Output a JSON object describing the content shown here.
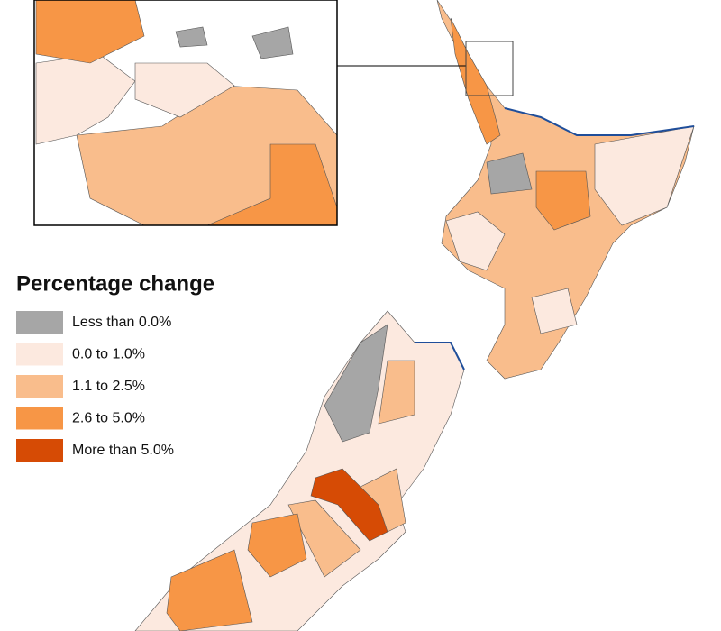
{
  "legend": {
    "title": "Percentage change",
    "items": [
      {
        "label": "Less than 0.0%",
        "color": "#a6a6a6"
      },
      {
        "label": "0.0 to 1.0%",
        "color": "#fce9df"
      },
      {
        "label": "1.1 to 2.5%",
        "color": "#f9bd8c"
      },
      {
        "label": "2.6 to 5.0%",
        "color": "#f79646"
      },
      {
        "label": "More than 5.0%",
        "color": "#d64b05"
      }
    ]
  }
}
